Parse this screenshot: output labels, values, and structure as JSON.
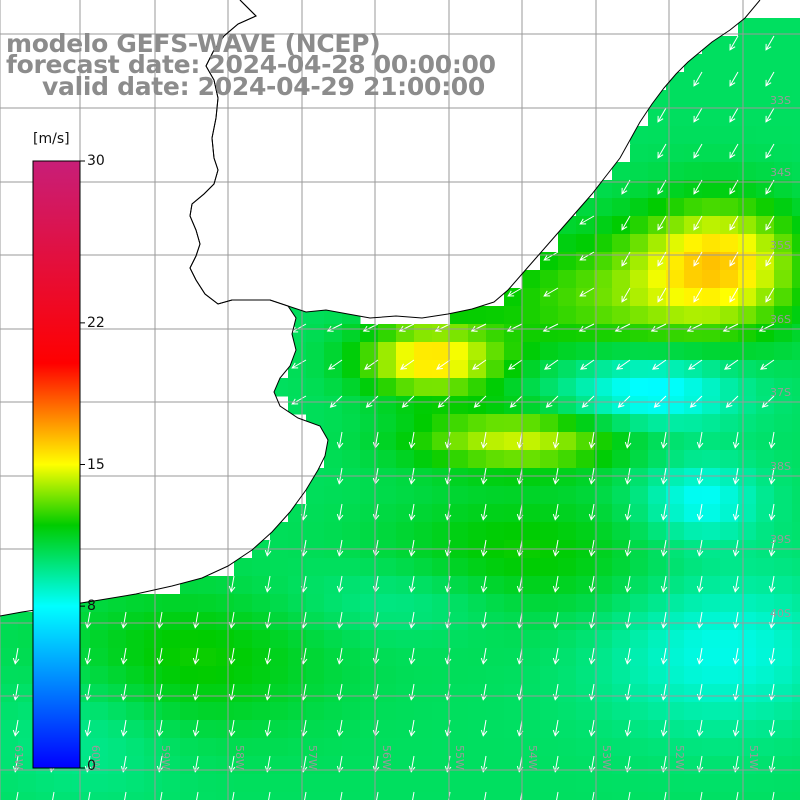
{
  "header": {
    "line1": "modelo GEFS-WAVE (NCEP)",
    "line2": "forecast date: 2024-04-28 00:00:00",
    "line3": "valid date: 2024-04-29 21:00:00"
  },
  "colorbar": {
    "unit": "[m/s]",
    "min": 0,
    "max": 30,
    "ticks": [
      {
        "label": "30",
        "value": 30
      },
      {
        "label": "22",
        "value": 22
      },
      {
        "label": "15",
        "value": 15
      },
      {
        "label": "8",
        "value": 8
      },
      {
        "label": "0",
        "value": 0
      }
    ],
    "colors": [
      "#0000ff",
      "#00ffff",
      "#00cc00",
      "#ffff00",
      "#ff0000",
      "#c81e78"
    ]
  },
  "map": {
    "lon_labels": [
      "61W",
      "60W",
      "59W",
      "58W",
      "57W",
      "56W",
      "55W",
      "54W",
      "53W",
      "52W",
      "51W"
    ],
    "lat_labels": [
      "33S",
      "34S",
      "35S",
      "36S",
      "37S",
      "38S",
      "39S",
      "40S"
    ],
    "land_color": "#ffffff",
    "grid_color": "#9a9a9a",
    "arrow_color": "#ffffff"
  }
}
